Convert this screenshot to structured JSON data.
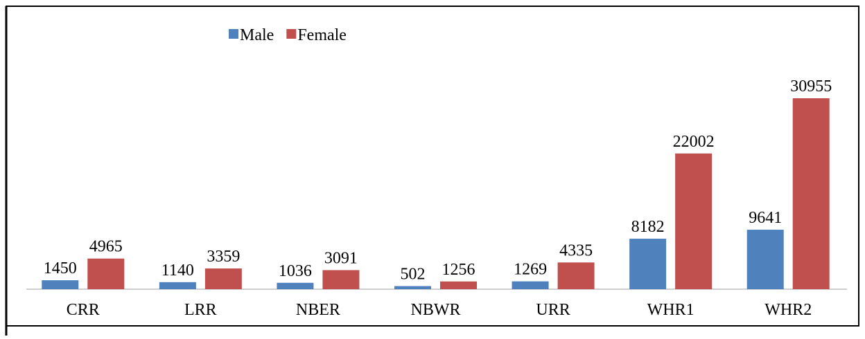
{
  "chart_data": {
    "type": "bar",
    "categories": [
      "CRR",
      "LRR",
      "NBER",
      "NBWR",
      "URR",
      "WHR1",
      "WHR2"
    ],
    "series": [
      {
        "name": "Male",
        "color": "#4f81bd",
        "values": [
          1450,
          1140,
          1036,
          502,
          1269,
          8182,
          9641
        ]
      },
      {
        "name": "Female",
        "color": "#c0504d",
        "values": [
          4965,
          3359,
          3091,
          1256,
          4335,
          22002,
          30955
        ]
      }
    ],
    "legend": "top"
  }
}
